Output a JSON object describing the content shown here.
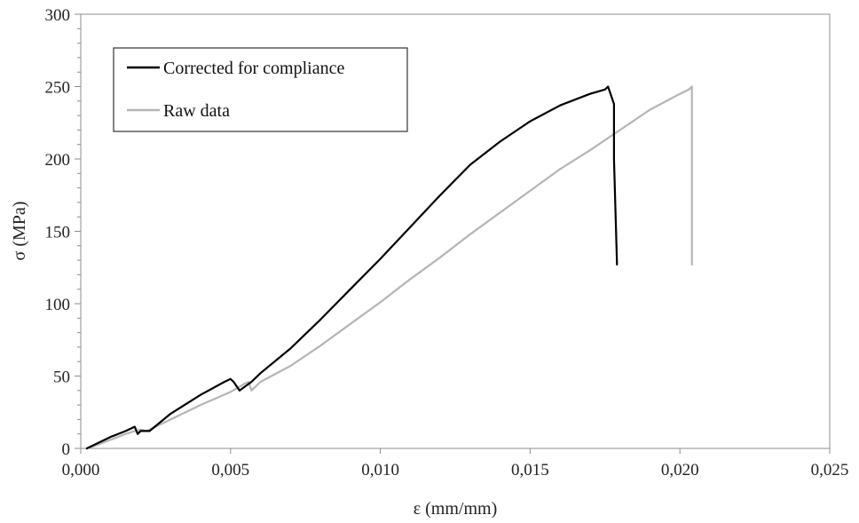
{
  "chart_data": {
    "type": "line",
    "title": "",
    "xlabel": "ε (mm/mm)",
    "ylabel": "σ (MPa)",
    "xlim": [
      0,
      0.025
    ],
    "ylim": [
      0,
      300
    ],
    "x_ticks": [
      0,
      0.005,
      0.01,
      0.015,
      0.02,
      0.025
    ],
    "x_tick_labels": [
      "0,000",
      "0,005",
      "0,010",
      "0,015",
      "0,020",
      "0,025"
    ],
    "y_ticks": [
      0,
      50,
      100,
      150,
      200,
      250,
      300
    ],
    "y_tick_labels": [
      "0",
      "50",
      "100",
      "150",
      "200",
      "250",
      "300"
    ],
    "grid": false,
    "legend_position": "top-left",
    "series": [
      {
        "name": "Corrected for compliance",
        "color": "#000000",
        "x": [
          0.0002,
          0.0005,
          0.001,
          0.0015,
          0.0018,
          0.0019,
          0.002,
          0.0023,
          0.003,
          0.004,
          0.0048,
          0.005,
          0.0051,
          0.0053,
          0.0055,
          0.0057,
          0.006,
          0.007,
          0.008,
          0.009,
          0.01,
          0.011,
          0.012,
          0.013,
          0.014,
          0.015,
          0.016,
          0.017,
          0.0175,
          0.0176,
          0.0178,
          0.0178,
          0.0179
        ],
        "y": [
          0,
          3,
          8,
          12,
          15,
          10,
          12,
          12,
          24,
          37,
          46,
          48,
          46,
          40,
          43,
          46,
          52,
          69,
          89,
          110,
          131,
          153,
          175,
          196,
          212,
          226,
          237,
          245,
          248,
          250,
          238,
          200,
          127
        ]
      },
      {
        "name": "Raw data",
        "color": "#b5b5b5",
        "x": [
          0.0002,
          0.0005,
          0.001,
          0.0015,
          0.0018,
          0.002,
          0.0022,
          0.003,
          0.004,
          0.005,
          0.0055,
          0.0056,
          0.0057,
          0.006,
          0.007,
          0.008,
          0.009,
          0.01,
          0.011,
          0.012,
          0.013,
          0.014,
          0.015,
          0.016,
          0.017,
          0.018,
          0.019,
          0.02,
          0.0203,
          0.0204,
          0.0204,
          0.0204
        ],
        "y": [
          0,
          2,
          6,
          10,
          12,
          13,
          12,
          20,
          30,
          39,
          45,
          46,
          40,
          46,
          57,
          71,
          86,
          101,
          117,
          132,
          148,
          163,
          178,
          193,
          206,
          220,
          234,
          245,
          248,
          250,
          200,
          127
        ]
      }
    ]
  }
}
